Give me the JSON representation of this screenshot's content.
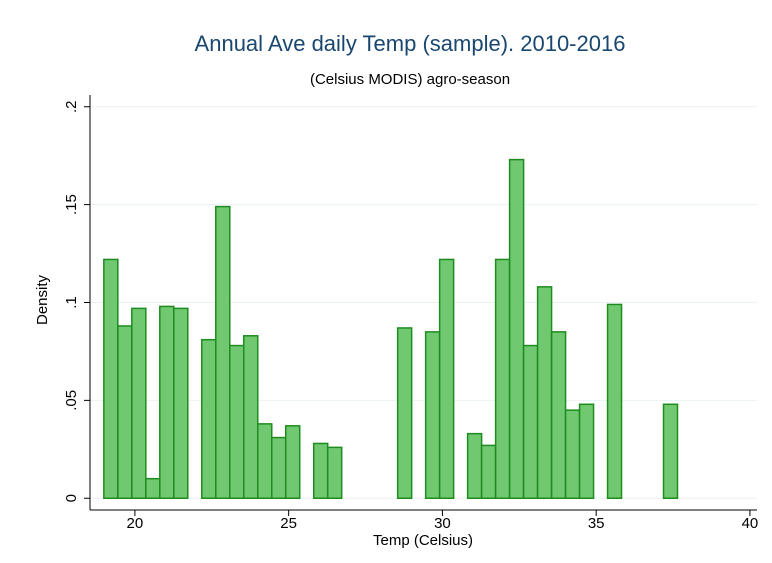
{
  "chart_data": {
    "type": "histogram",
    "title": "Annual Ave daily Temp (sample). 2010-2016",
    "subtitle": "(Celsius MODIS) agro-season",
    "x_label": "Temp (Celsius)",
    "y_label": "Density",
    "bins": [
      18.99,
      19.445,
      19.9,
      20.355,
      20.81,
      21.265,
      21.72,
      22.175,
      22.63,
      23.085,
      23.54,
      23.995,
      24.45,
      24.905,
      25.36,
      25.815,
      26.27,
      26.725,
      27.18,
      27.635,
      28.09,
      28.545,
      29.0,
      29.455,
      29.91,
      30.365,
      30.82,
      31.275,
      31.73,
      32.185,
      32.64,
      33.095,
      33.55,
      34.005,
      34.46,
      34.915,
      35.37,
      35.825,
      36.28,
      36.735,
      37.19,
      37.645
    ],
    "values": [
      0.122,
      0.088,
      0.097,
      0.01,
      0.098,
      0.097,
      0,
      0.081,
      0.149,
      0.078,
      0.083,
      0.038,
      0.031,
      0.037,
      0,
      0.028,
      0.026,
      0,
      0,
      0,
      0,
      0.087,
      0,
      0.085,
      0.122,
      0,
      0.033,
      0.027,
      0.122,
      0.173,
      0.078,
      0.108,
      0.085,
      0.045,
      0.048,
      0,
      0.099,
      0,
      0,
      0,
      0.048
    ],
    "color": "#70c870",
    "edge_color": "#1e8c1e",
    "xlim": [
      18.54,
      40.23
    ],
    "xticks": [
      20,
      25,
      30,
      35,
      40
    ],
    "ylim": [
      -0.006,
      0.206
    ],
    "yticks": [
      0,
      {
        "value": 0.05,
        "label": ".05"
      },
      {
        "value": 0.1,
        "label": ".1"
      },
      {
        "value": 0.15,
        "label": ".15"
      },
      {
        "value": 0.2,
        "label": ".2"
      }
    ],
    "grid": true
  }
}
